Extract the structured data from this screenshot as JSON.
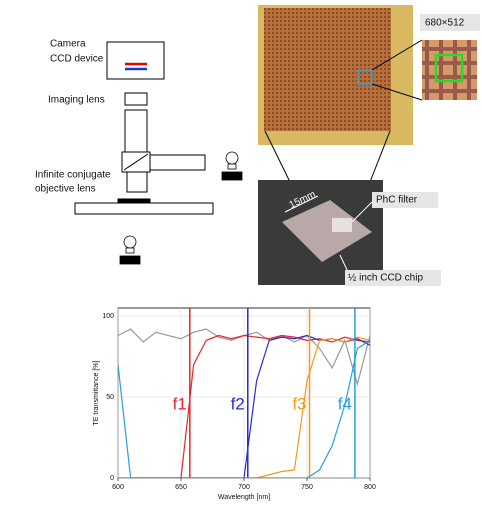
{
  "diagram": {
    "labels": {
      "camera": "Camera",
      "ccd_device": "CCD device",
      "imaging_lens": "Imaging lens",
      "objective_line1": "Infinite    conjugate",
      "objective_line2": "objective lens"
    }
  },
  "photos": {
    "resolution": "680×512",
    "scale": "15mm",
    "filter": "PhC filter",
    "chip": "½ inch CCD chip"
  },
  "chart_data": {
    "type": "line",
    "x_label": "Wavelength [nm]",
    "y_label": "TE transmittance [%]",
    "x": [
      600,
      610,
      620,
      630,
      640,
      650,
      660,
      670,
      680,
      690,
      700,
      710,
      720,
      730,
      740,
      750,
      760,
      770,
      780,
      790,
      800
    ],
    "xlim": [
      600,
      800
    ],
    "ylim": [
      0,
      105
    ],
    "xticks": [
      600,
      650,
      700,
      750,
      800
    ],
    "yticks": [
      0,
      50,
      100
    ],
    "grid": true,
    "series": [
      {
        "color": "#999999",
        "values": [
          88,
          92,
          84,
          90,
          88,
          86,
          90,
          92,
          87,
          85,
          88,
          90,
          85,
          88,
          84,
          88,
          80,
          68,
          85,
          58,
          88
        ]
      },
      {
        "name": "f1",
        "color": "#e8262a",
        "marker": 657,
        "values": [
          0,
          0,
          0,
          0,
          0,
          0,
          70,
          85,
          88,
          86,
          88,
          87,
          86,
          88,
          87,
          85,
          86,
          84,
          87,
          85,
          84
        ]
      },
      {
        "name": "f2",
        "color": "#2a2ad8",
        "marker": 703,
        "values": [
          0,
          0,
          0,
          0,
          0,
          0,
          0,
          0,
          0,
          0,
          0,
          60,
          85,
          87,
          86,
          88,
          85,
          86,
          84,
          86,
          82
        ]
      },
      {
        "name": "f3",
        "color": "#f39a1e",
        "marker": 752,
        "values": [
          0,
          0,
          0,
          0,
          0,
          0,
          0,
          0,
          0,
          0,
          0,
          0,
          2,
          4,
          5,
          60,
          85,
          86,
          84,
          87,
          85
        ]
      },
      {
        "name": "f4",
        "color": "#2a9ee0",
        "marker": 788,
        "values": [
          70,
          0,
          0,
          0,
          0,
          0,
          0,
          0,
          0,
          0,
          0,
          0,
          0,
          0,
          0,
          0,
          5,
          20,
          45,
          80,
          85
        ]
      }
    ]
  }
}
